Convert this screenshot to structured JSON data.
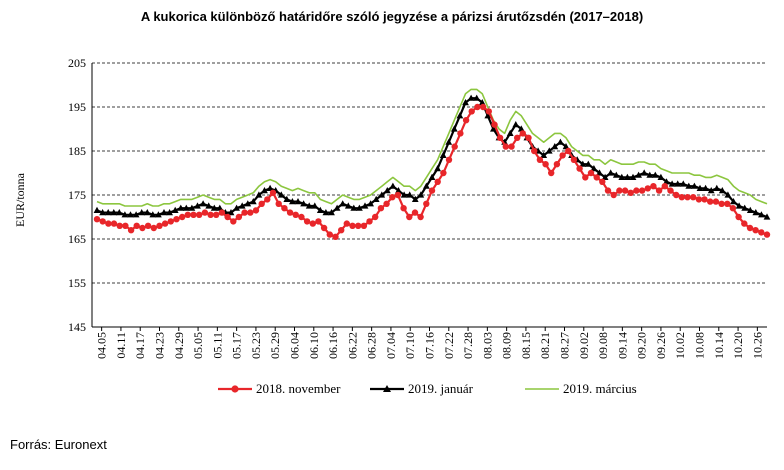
{
  "chart_data": {
    "type": "line",
    "title": "A kukorica különböző határidőre szóló jegyzése a párizsi árutőzsdén (2017–2018)",
    "ylabel": "EUR/tonna",
    "xlabel": "",
    "ylim": [
      145,
      205
    ],
    "yticks": [
      145,
      155,
      165,
      175,
      185,
      195,
      205
    ],
    "grid": "horizontal-dashed",
    "legend": "bottom",
    "x_tick_labels": [
      "04.05",
      "04.11",
      "04.17",
      "04.23",
      "04.29",
      "05.05",
      "05.11",
      "05.17",
      "05.23",
      "05.29",
      "06.04",
      "06.10",
      "06.16",
      "06.22",
      "06.28",
      "07.04",
      "07.10",
      "07.16",
      "07.22",
      "07.28",
      "08.03",
      "08.09",
      "08.15",
      "08.21",
      "08.27",
      "09.02",
      "09.08",
      "09.14",
      "09.20",
      "09.26",
      "10.02",
      "10.08",
      "10.14",
      "10.20",
      "10.26"
    ],
    "series": [
      {
        "name": "2018. november",
        "color": "#e8262a",
        "marker": "circle",
        "values": [
          169.5,
          169,
          168.5,
          168.5,
          168,
          168,
          167,
          168,
          167.5,
          168,
          167.5,
          168,
          168.5,
          169,
          169.5,
          170,
          170.5,
          170.5,
          170.5,
          171,
          170.5,
          170.5,
          171,
          170,
          169,
          170,
          171,
          171,
          171.5,
          173,
          174,
          175.5,
          173,
          172,
          171,
          170.5,
          170,
          169,
          168.5,
          169,
          167.5,
          166,
          165.5,
          167,
          168.5,
          168,
          168,
          168,
          169,
          170,
          172,
          173,
          174.5,
          175,
          172,
          170,
          171,
          170,
          173,
          176,
          178,
          180,
          183,
          186,
          189,
          192,
          194,
          195,
          195,
          194,
          191,
          188,
          186,
          186,
          188,
          189,
          188,
          185,
          183,
          182,
          180,
          182,
          184,
          185,
          183,
          181,
          179,
          180,
          179,
          178,
          176,
          175,
          176,
          176,
          175.5,
          176,
          176,
          176.5,
          177,
          176,
          177,
          176,
          175,
          174.5,
          174.5,
          174.5,
          174,
          174,
          173.5,
          173.5,
          173,
          173,
          172,
          170,
          168.5,
          167.5,
          167,
          166.5,
          166
        ]
      },
      {
        "name": "2019. január",
        "color": "#000000",
        "marker": "triangle",
        "values": [
          171.5,
          171,
          171,
          171,
          171,
          170.5,
          170.5,
          170.5,
          171,
          171,
          170.5,
          170.5,
          171,
          171,
          171.5,
          172,
          172,
          172,
          172.5,
          173,
          172.5,
          172,
          172,
          171,
          171,
          172,
          172.5,
          173,
          173.5,
          175,
          176,
          176.5,
          176,
          175,
          174,
          173.5,
          173.5,
          173,
          172.5,
          172.5,
          171.5,
          171,
          171,
          172,
          173,
          172.5,
          172,
          172,
          172.5,
          173,
          174,
          175,
          176,
          177,
          176,
          175,
          175,
          174,
          175,
          177,
          179,
          181,
          184,
          187,
          190,
          193,
          196,
          197,
          197,
          196,
          193,
          190,
          188,
          187,
          189,
          191,
          190,
          188,
          186,
          185,
          184,
          185,
          186,
          187,
          186,
          184,
          183,
          182,
          182,
          181,
          180,
          179,
          180,
          179.5,
          179,
          179,
          179,
          179.5,
          180,
          179.5,
          179.5,
          179,
          178,
          177.5,
          177.5,
          177.5,
          177,
          177,
          176.5,
          176.5,
          176,
          176.5,
          176,
          175,
          173.5,
          172.5,
          172,
          171.5,
          171,
          170.5,
          170
        ]
      },
      {
        "name": "2019. március",
        "color": "#8cc63f",
        "marker": "none",
        "values": [
          173.5,
          173,
          173,
          173,
          173,
          172.5,
          172.5,
          172.5,
          172.5,
          173,
          172.5,
          172.5,
          173,
          173,
          173.5,
          174,
          174,
          174,
          174.5,
          175,
          174.5,
          174,
          174,
          173,
          173,
          174,
          174.5,
          175,
          175.5,
          177,
          178,
          178.5,
          178,
          177,
          176.5,
          176,
          176.5,
          176,
          175.5,
          175.5,
          174,
          173.5,
          173,
          174,
          175,
          174.5,
          174,
          174,
          174.5,
          175,
          176,
          177,
          178,
          179,
          178,
          177,
          177,
          176,
          177,
          179,
          181,
          183,
          186,
          189,
          192,
          195,
          198,
          199,
          199,
          198,
          195,
          192,
          190,
          189,
          192,
          194,
          193,
          191,
          189,
          188,
          187,
          188,
          189,
          189,
          188,
          186,
          185,
          184,
          184,
          183,
          183,
          182,
          183,
          182.5,
          182,
          182,
          182,
          182.5,
          182.5,
          182,
          182,
          181,
          180.5,
          180,
          180,
          180,
          180,
          179.5,
          179.5,
          179,
          179,
          179.5,
          179,
          178.5,
          177,
          176,
          175.5,
          175,
          174,
          173.5,
          173
        ]
      }
    ]
  },
  "source": "Forrás: Euronext"
}
